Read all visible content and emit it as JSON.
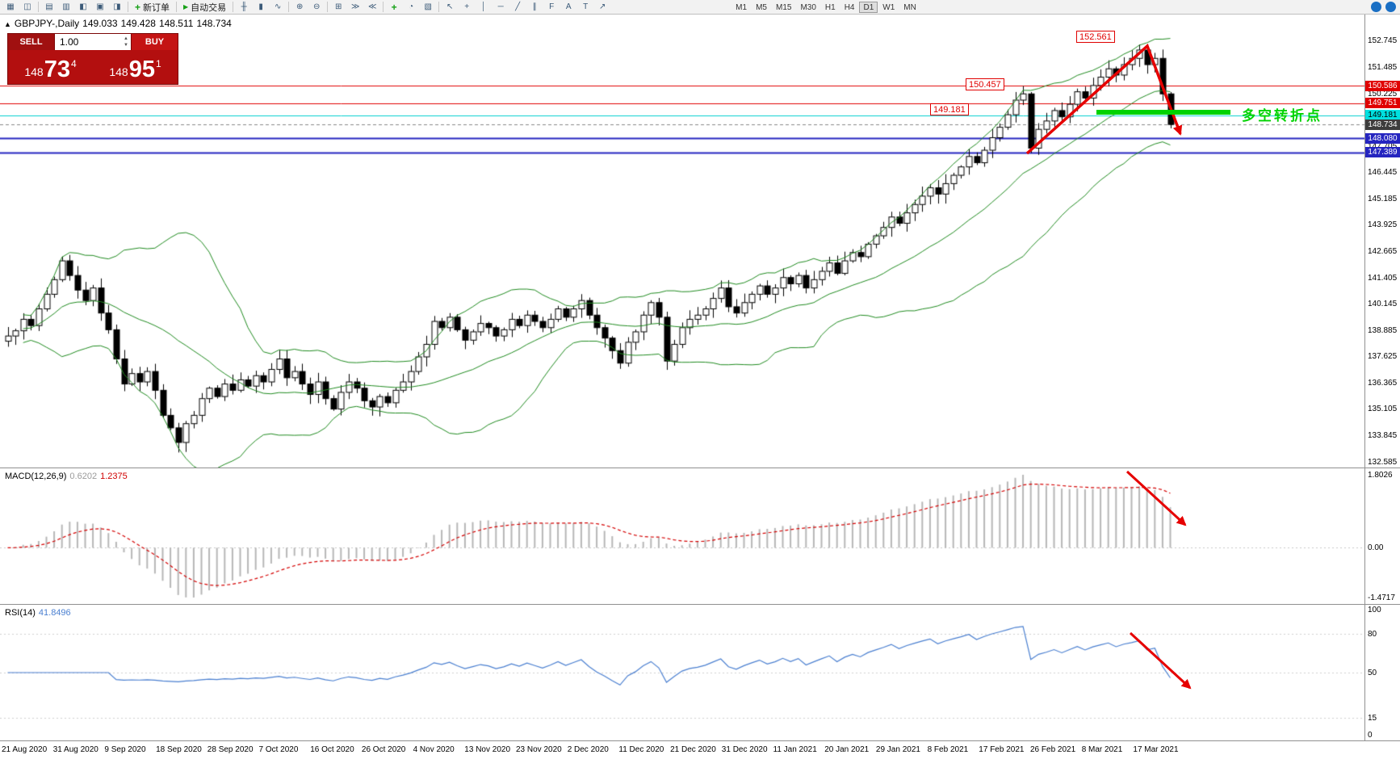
{
  "toolbar": {
    "left_icons_a": [
      "new-chart-icon",
      "profiles-icon"
    ],
    "left_icons_b": [
      "market-watch-icon",
      "data-window-icon",
      "navigator-icon",
      "terminal-icon",
      "strategy-tester-icon"
    ],
    "new_order_label": "新订单",
    "autotrading_label": "自动交易",
    "chart_icons": [
      "bar-chart-icon",
      "candlestick-chart-icon",
      "line-chart-icon"
    ],
    "zoom_icons": [
      "zoom-in-icon",
      "zoom-out-icon"
    ],
    "window_icons": [
      "tile-windows-icon",
      "auto-scroll-icon",
      "chart-shift-icon"
    ],
    "insert_icons": [
      "indicators-icon",
      "periods-icon",
      "templates-icon"
    ],
    "draw_icons": [
      "cursor-icon",
      "crosshair-icon",
      "vertical-line-icon",
      "horizontal-line-icon",
      "trendline-icon",
      "equidistant-channel-icon",
      "fibonacci-icon",
      "text-icon",
      "label-icon",
      "arrows-icon"
    ],
    "timeframes": [
      "M1",
      "M5",
      "M15",
      "M30",
      "H1",
      "H4",
      "D1",
      "W1",
      "MN"
    ],
    "active_timeframe": "D1",
    "right_icons": [
      "search-icon",
      "community-icon"
    ]
  },
  "chart_header": {
    "symbol_period": "GBPJPY-,Daily",
    "open": "149.033",
    "high": "149.428",
    "low": "148.511",
    "close": "148.734"
  },
  "trade_panel": {
    "sell_label": "SELL",
    "buy_label": "BUY",
    "volume": "1.00",
    "sell_price_small": "148",
    "sell_price_big": "73",
    "sell_price_sup": "4",
    "buy_price_small": "148",
    "buy_price_big": "95",
    "buy_price_sup": "1"
  },
  "annotations": {
    "peak_price_label": "152.561",
    "resistance_label": "150.457",
    "turning_level_label": "149.181",
    "turning_point_text": "多空转折点"
  },
  "macd": {
    "name": "MACD(12,26,9)",
    "value_main": "0.6202",
    "value_signal": "1.2375"
  },
  "rsi": {
    "name": "RSI(14)",
    "value": "41.8496"
  },
  "chart_data": {
    "type": "candlestick",
    "symbol": "GBPJPY",
    "period": "Daily",
    "ylim": [
      132.3,
      154.0
    ],
    "y_ticks": [
      "152.745",
      "151.485",
      "150.225",
      "147.705",
      "146.445",
      "145.185",
      "143.925",
      "142.665",
      "141.405",
      "140.145",
      "138.885",
      "137.625",
      "136.365",
      "135.105",
      "133.845",
      "132.585"
    ],
    "x_labels": [
      "21 Aug 2020",
      "31 Aug 2020",
      "9 Sep 2020",
      "18 Sep 2020",
      "28 Sep 2020",
      "7 Oct 2020",
      "16 Oct 2020",
      "26 Oct 2020",
      "4 Nov 2020",
      "13 Nov 2020",
      "23 Nov 2020",
      "2 Dec 2020",
      "11 Dec 2020",
      "21 Dec 2020",
      "31 Dec 2020",
      "11 Jan 2021",
      "20 Jan 2021",
      "29 Jan 2021",
      "8 Feb 2021",
      "17 Feb 2021",
      "26 Feb 2021",
      "8 Mar 2021",
      "17 Mar 2021"
    ],
    "closes": [
      138.6,
      138.85,
      139.4,
      139.1,
      139.9,
      140.6,
      141.3,
      142.2,
      141.5,
      140.8,
      140.3,
      140.9,
      139.7,
      138.9,
      137.5,
      136.3,
      136.8,
      136.4,
      136.9,
      136.0,
      134.8,
      134.2,
      133.5,
      134.4,
      134.8,
      135.6,
      136.1,
      135.7,
      136.3,
      136.0,
      136.5,
      136.2,
      136.7,
      136.4,
      137.0,
      137.5,
      136.6,
      136.9,
      136.3,
      135.8,
      136.4,
      135.6,
      135.1,
      135.9,
      136.4,
      136.1,
      135.5,
      135.2,
      135.7,
      135.4,
      136.0,
      136.4,
      136.9,
      137.6,
      138.2,
      139.3,
      139.0,
      139.5,
      138.9,
      138.4,
      138.8,
      139.2,
      139.0,
      138.6,
      138.9,
      139.4,
      139.1,
      139.6,
      139.3,
      139.0,
      139.4,
      139.9,
      139.5,
      139.9,
      140.3,
      139.6,
      139.0,
      138.5,
      137.9,
      137.3,
      138.3,
      138.8,
      139.6,
      140.2,
      139.5,
      137.4,
      138.2,
      139.0,
      139.4,
      139.6,
      139.9,
      140.4,
      140.9,
      140.0,
      139.7,
      140.2,
      140.6,
      141.0,
      140.6,
      140.9,
      141.4,
      141.1,
      141.5,
      140.9,
      141.3,
      141.7,
      142.1,
      141.6,
      142.2,
      142.6,
      142.4,
      143.0,
      143.4,
      143.8,
      144.3,
      144.0,
      144.5,
      144.9,
      145.3,
      145.7,
      145.4,
      145.9,
      146.3,
      146.7,
      147.2,
      146.9,
      147.5,
      148.1,
      148.6,
      149.2,
      149.9,
      150.2,
      147.6,
      148.5,
      148.9,
      149.4,
      149.1,
      149.7,
      150.3,
      150.0,
      150.6,
      151.0,
      151.4,
      151.1,
      151.6,
      151.9,
      152.3,
      151.6,
      151.9,
      150.2,
      148.734
    ],
    "peak_high": 152.561,
    "trough_low": 133.02,
    "overlays": {
      "bollinger": {
        "period": 20,
        "deviation": 2,
        "color": "#1f8a1f"
      },
      "horizontal_lines": [
        {
          "price": 150.586,
          "badge_label": "150.586",
          "color": "#e00000",
          "badge_bg": "#e00000",
          "width": 1
        },
        {
          "price": 149.751,
          "badge_label": "149.751",
          "color": "#e00000",
          "badge_bg": "#e00000",
          "width": 1
        },
        {
          "price": 149.181,
          "badge_label": "149.181",
          "color": "#00cfcf",
          "badge_bg": "#00e0e0",
          "badge_fg": "#000",
          "width": 1
        },
        {
          "price": 148.734,
          "badge_label": "148.734",
          "color": "#888888",
          "badge_bg": "#3d3d3d",
          "width": 1,
          "style": "dashed"
        },
        {
          "price": 148.08,
          "badge_label": "148.080",
          "color": "#2525c0",
          "badge_bg": "#2525c0",
          "width": 2
        },
        {
          "price": 147.389,
          "badge_label": "147.389",
          "color": "#2525c0",
          "badge_bg": "#2525c0",
          "width": 2
        }
      ]
    },
    "macd": {
      "fast": 12,
      "slow": 26,
      "signal": 9,
      "last_main": 0.6202,
      "last_signal": 1.2375,
      "axis_labels": [
        "1.8026",
        "0.00",
        "-1.4717"
      ],
      "histogram_color": "#b6b6b6",
      "signal_color": "#d40000"
    },
    "rsi": {
      "period": 14,
      "last": 41.8496,
      "axis_labels": [
        "100",
        "80",
        "50",
        "15",
        "0"
      ],
      "levels": [
        80,
        50,
        15
      ],
      "line_color": "#4a7fd0"
    }
  }
}
